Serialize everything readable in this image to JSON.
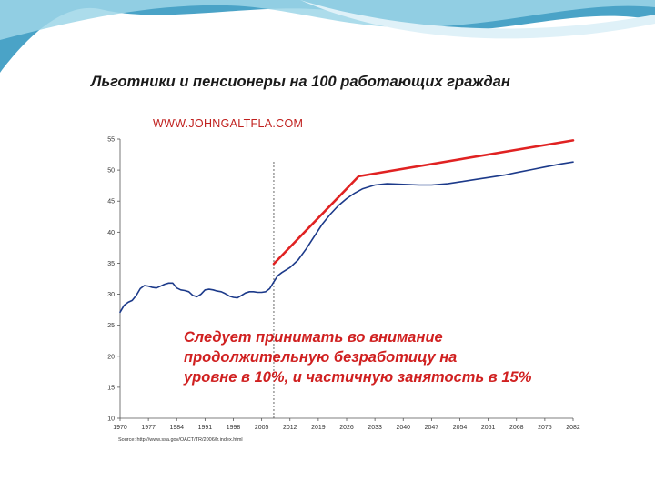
{
  "slide": {
    "accent_colors": [
      "#4aa3c7",
      "#9ed6e8",
      "#dff1f8"
    ]
  },
  "chart_data": {
    "type": "line",
    "title": "Льготники и пенсионеры на 100 работающих граждан",
    "watermark": "WWW.JOHNGALTFLA.COM",
    "xlabel": "",
    "ylabel": "",
    "xlim": [
      1970,
      2082
    ],
    "ylim": [
      10,
      55
    ],
    "yticks": [
      10,
      15,
      20,
      25,
      30,
      35,
      40,
      45,
      50,
      55
    ],
    "xticks": [
      1970,
      1977,
      1984,
      1991,
      1998,
      2005,
      2012,
      2019,
      2026,
      2033,
      2040,
      2047,
      2054,
      2061,
      2068,
      2075,
      2082
    ],
    "grid": false,
    "divider_x": 2008,
    "series": [
      {
        "color": "#1c3a8a",
        "x": [
          1970,
          1971,
          1972,
          1973,
          1974,
          1975,
          1976,
          1977,
          1978,
          1979,
          1980,
          1981,
          1982,
          1983,
          1984,
          1985,
          1986,
          1987,
          1988,
          1989,
          1990,
          1991,
          1992,
          1993,
          1994,
          1995,
          1996,
          1997,
          1998,
          1999,
          2000,
          2001,
          2002,
          2003,
          2004,
          2005,
          2006,
          2007,
          2008,
          2009,
          2010,
          2012,
          2014,
          2016,
          2018,
          2020,
          2022,
          2024,
          2026,
          2028,
          2030,
          2033,
          2036,
          2040,
          2044,
          2047,
          2051,
          2054,
          2058,
          2061,
          2065,
          2068,
          2072,
          2075,
          2079,
          2082
        ],
        "values": [
          27.1,
          28.2,
          28.7,
          29.0,
          29.8,
          30.9,
          31.4,
          31.3,
          31.1,
          31.0,
          31.3,
          31.6,
          31.8,
          31.8,
          31.0,
          30.7,
          30.6,
          30.4,
          29.8,
          29.6,
          30.0,
          30.7,
          30.8,
          30.7,
          30.5,
          30.4,
          30.1,
          29.7,
          29.5,
          29.4,
          29.8,
          30.2,
          30.4,
          30.4,
          30.3,
          30.3,
          30.4,
          30.9,
          32.0,
          33.0,
          33.5,
          34.3,
          35.5,
          37.3,
          39.3,
          41.3,
          42.9,
          44.3,
          45.4,
          46.3,
          47.0,
          47.6,
          47.8,
          47.7,
          47.6,
          47.6,
          47.8,
          48.1,
          48.5,
          48.8,
          49.2,
          49.6,
          50.1,
          50.5,
          51.0,
          51.3
        ]
      },
      {
        "color": "#e02222",
        "x": [
          2008,
          2029,
          2082
        ],
        "values": [
          34.9,
          49.0,
          54.8
        ]
      }
    ],
    "annotation": [
      "Следует принимать во внимание",
      "продолжительную безработицу на",
      "уровне в 10%, и частичную занятость в 15%"
    ],
    "source": "Source: http://www.ssa.gov/OACT/TR/2006/lr.index.html"
  }
}
